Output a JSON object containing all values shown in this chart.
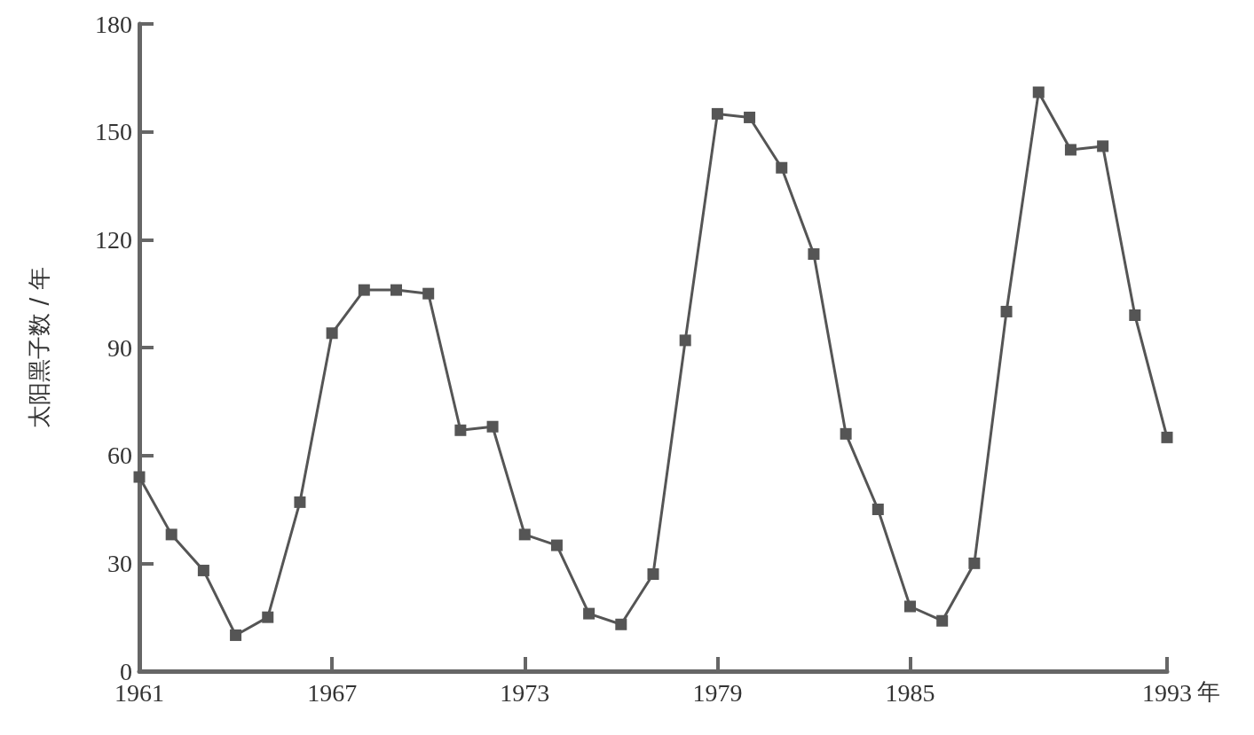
{
  "chart_data": {
    "type": "line",
    "xlabel": "年",
    "ylabel": "太阳黑子数 / 年",
    "x": [
      1961,
      1962,
      1963,
      1964,
      1965,
      1966,
      1967,
      1968,
      1969,
      1970,
      1971,
      1972,
      1973,
      1974,
      1975,
      1976,
      1977,
      1978,
      1979,
      1980,
      1981,
      1982,
      1983,
      1984,
      1985,
      1986,
      1987,
      1988,
      1989,
      1990,
      1991,
      1992,
      1993
    ],
    "series": [
      {
        "color": "#555555",
        "values": [
          54,
          38,
          28,
          10,
          15,
          47,
          94,
          106,
          106,
          105,
          67,
          68,
          38,
          35,
          16,
          13,
          27,
          92,
          155,
          154,
          140,
          116,
          66,
          45,
          18,
          14,
          30,
          100,
          161,
          145,
          146,
          99,
          65
        ]
      }
    ],
    "xlim": [
      1961,
      1993
    ],
    "xticks": [
      1961,
      1967,
      1973,
      1979,
      1985,
      1993
    ],
    "ylim": [
      0,
      180
    ],
    "yticks": [
      0,
      30,
      60,
      90,
      120,
      150,
      180
    ],
    "grid": false,
    "marker": "square",
    "line_style": "solid"
  }
}
